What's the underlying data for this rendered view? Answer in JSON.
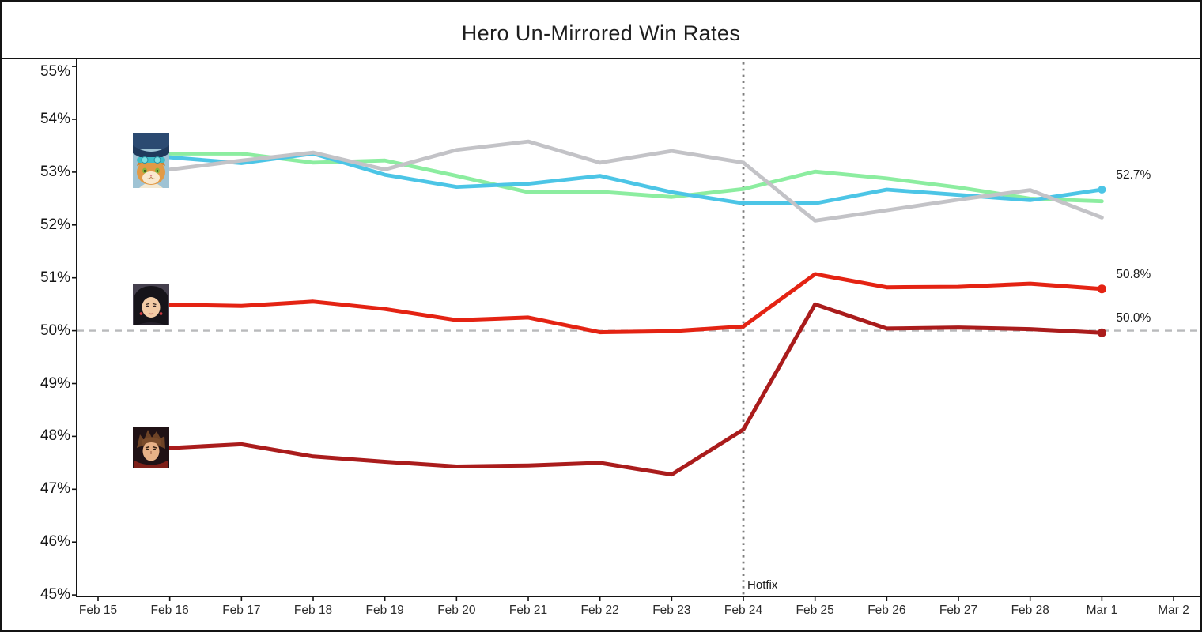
{
  "title": "Hero Un-Mirrored Win Rates",
  "chart_data": {
    "type": "line",
    "title": "Hero Un-Mirrored Win Rates",
    "x_labels": [
      "Feb 15",
      "Feb 16",
      "Feb 17",
      "Feb 18",
      "Feb 19",
      "Feb 20",
      "Feb 21",
      "Feb 22",
      "Feb 23",
      "Feb 24",
      "Feb 25",
      "Feb 26",
      "Feb 27",
      "Feb 28",
      "Mar 1",
      "Mar 2"
    ],
    "y_ticks": [
      "55%",
      "54%",
      "53%",
      "52%",
      "51%",
      "50%",
      "49%",
      "48%",
      "47%",
      "46%",
      "45%"
    ],
    "y_range": [
      45,
      55
    ],
    "grid": false,
    "legend_position": "none",
    "series": [
      {
        "name": "green-hero",
        "color": "#8ceda0",
        "start_x": "Feb 16",
        "values": [
          53.35,
          53.35,
          53.18,
          53.22,
          52.93,
          52.62,
          52.63,
          52.53,
          52.68,
          53.01,
          52.88,
          52.71,
          52.5,
          52.45
        ]
      },
      {
        "name": "cyan-hero",
        "color": "#4cc5e6",
        "start_x": "Feb 16",
        "end_dot": true,
        "end_label": "52.7%",
        "values": [
          53.28,
          53.17,
          53.35,
          52.95,
          52.72,
          52.78,
          52.93,
          52.62,
          52.41,
          52.41,
          52.67,
          52.57,
          52.47,
          52.67
        ]
      },
      {
        "name": "gray-hero",
        "color": "#c3c3c7",
        "start_x": "Feb 16",
        "values": [
          53.05,
          53.22,
          53.37,
          53.05,
          53.42,
          53.58,
          53.18,
          53.4,
          53.18,
          52.08,
          52.28,
          52.48,
          52.66,
          52.14
        ]
      },
      {
        "name": "red-hero",
        "color": "#e42313",
        "start_x": "Feb 16",
        "end_dot": true,
        "end_label": "50.8%",
        "values": [
          50.49,
          50.47,
          50.55,
          50.41,
          50.2,
          50.25,
          49.97,
          49.99,
          50.08,
          51.07,
          50.82,
          50.83,
          50.89,
          50.79
        ]
      },
      {
        "name": "dark-red-hero",
        "color": "#aa1c1c",
        "start_x": "Feb 16",
        "end_dot": true,
        "end_label": "50.0%",
        "values": [
          47.78,
          47.85,
          47.62,
          47.52,
          47.43,
          47.45,
          47.5,
          47.28,
          48.13,
          50.5,
          50.04,
          50.06,
          50.03,
          49.96
        ]
      }
    ],
    "reference_line": {
      "value": 50,
      "style": "dashed",
      "color": "#b9babc"
    },
    "event_line": {
      "x": "Feb 24",
      "label": "Hotfix",
      "style": "dotted",
      "color": "#7d7d7d"
    }
  },
  "avatars": [
    {
      "name": "cat-hero-avatar",
      "anchor": "top-cluster"
    },
    {
      "name": "red-hero-avatar",
      "anchor": "red-hero"
    },
    {
      "name": "dark-red-hero-avatar",
      "anchor": "dark-red-hero"
    }
  ]
}
